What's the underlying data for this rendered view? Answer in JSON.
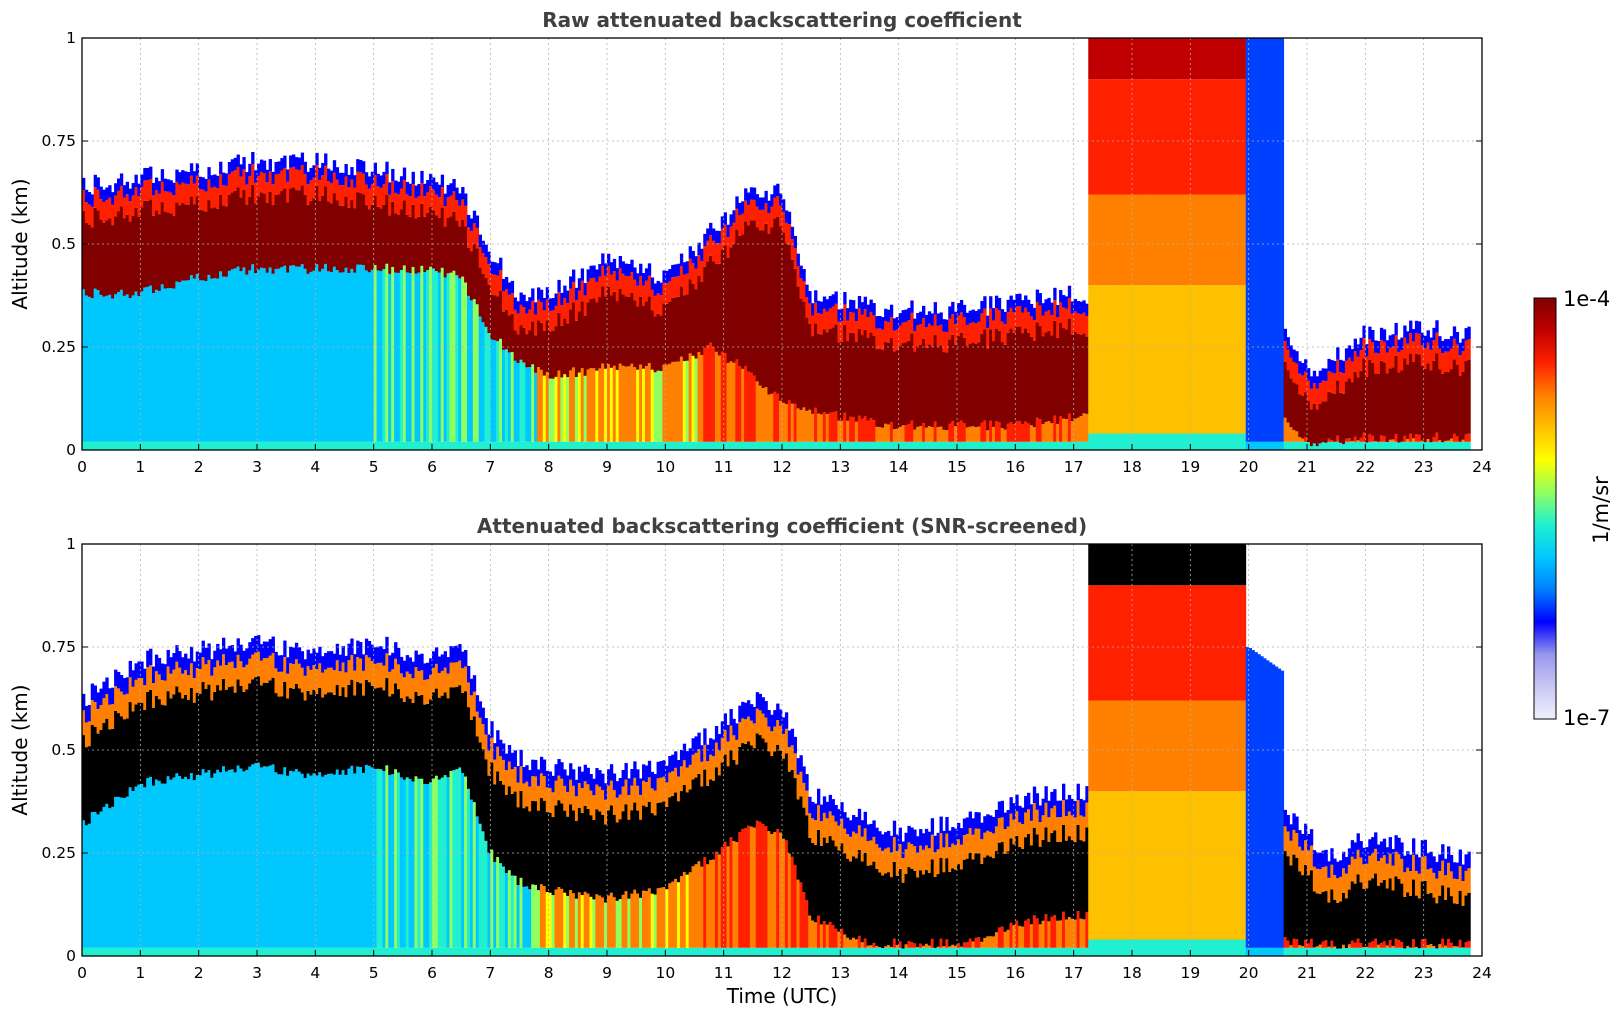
{
  "colorbar": {
    "max_label": "1e-4",
    "min_label": "1e-7",
    "unit_label": "1/m/sr",
    "colors": [
      "#f0f0fb",
      "#c8c8f4",
      "#9696ec",
      "#0000ff",
      "#0080ff",
      "#00c8ff",
      "#20f0d0",
      "#90ff60",
      "#ffff00",
      "#ffc000",
      "#ff8000",
      "#ff2000",
      "#c00000",
      "#800000"
    ]
  },
  "chart_data": [
    {
      "type": "heatmap",
      "title": "Raw attenuated backscattering coefficient",
      "xlabel": "",
      "ylabel": "Altitude (km)",
      "xlim": [
        0,
        24
      ],
      "ylim": [
        0,
        1
      ],
      "xticks": [
        "0",
        "1",
        "2",
        "3",
        "4",
        "5",
        "6",
        "7",
        "8",
        "9",
        "10",
        "11",
        "12",
        "13",
        "14",
        "15",
        "16",
        "17",
        "18",
        "19",
        "20",
        "21",
        "22",
        "23",
        "24"
      ],
      "yticks": [
        "0",
        "0.25",
        "0.5",
        "0.75",
        "1"
      ],
      "grid": true,
      "data_end_hour": 23.8,
      "layer_top_km": {
        "hour": [
          0,
          1,
          2,
          3,
          4,
          5,
          6,
          6.5,
          7,
          7.5,
          8,
          9,
          10,
          10.8,
          11.5,
          12,
          12.5,
          13,
          14,
          15,
          16,
          17,
          17.2,
          20.0,
          20.5,
          21.0,
          21.3,
          22,
          23,
          23.5
        ],
        "km": [
          0.56,
          0.58,
          0.6,
          0.62,
          0.62,
          0.6,
          0.58,
          0.55,
          0.4,
          0.3,
          0.3,
          0.38,
          0.34,
          0.45,
          0.55,
          0.55,
          0.3,
          0.28,
          0.26,
          0.26,
          0.28,
          0.3,
          0.3,
          0.3,
          0.25,
          0.12,
          0.12,
          0.2,
          0.22,
          0.2
        ]
      },
      "layer_base_km": {
        "hour": [
          0,
          1,
          2,
          3,
          4,
          5,
          6,
          6.5,
          7,
          7.5,
          8,
          9,
          10,
          10.8,
          11.5,
          12,
          12.5,
          13,
          14,
          15,
          16,
          17,
          17.2,
          20.0,
          20.5,
          21.0,
          21.3,
          22,
          23,
          23.5
        ],
        "km": [
          0.38,
          0.38,
          0.42,
          0.44,
          0.44,
          0.44,
          0.44,
          0.42,
          0.28,
          0.22,
          0.18,
          0.2,
          0.2,
          0.25,
          0.18,
          0.12,
          0.1,
          0.08,
          0.06,
          0.06,
          0.06,
          0.08,
          0.1,
          0.1,
          0.1,
          0.02,
          0.02,
          0.03,
          0.03,
          0.03
        ]
      },
      "fog_hours": [
        17.25,
        19.95
      ],
      "blue_column_hours": [
        19.95,
        20.6
      ]
    },
    {
      "type": "heatmap",
      "title": "Attenuated backscattering coefficient (SNR-screened)",
      "xlabel": "Time (UTC)",
      "ylabel": "Altitude (km)",
      "xlim": [
        0,
        24
      ],
      "ylim": [
        0,
        1
      ],
      "xticks": [
        "0",
        "1",
        "2",
        "3",
        "4",
        "5",
        "6",
        "7",
        "8",
        "9",
        "10",
        "11",
        "12",
        "13",
        "14",
        "15",
        "16",
        "17",
        "18",
        "19",
        "20",
        "21",
        "22",
        "23",
        "24"
      ],
      "yticks": [
        "0",
        "0.25",
        "0.5",
        "0.75",
        "1"
      ],
      "grid": true,
      "data_end_hour": 23.8,
      "screened_top_km": {
        "hour": [
          0,
          1,
          2,
          3,
          4,
          5,
          6,
          6.5,
          7,
          7.5,
          8,
          9,
          10,
          10.8,
          11.5,
          12,
          12.5,
          13,
          14,
          15,
          16,
          17,
          17.2,
          20.0,
          20.5,
          21.0,
          21.3,
          22,
          23,
          23.5
        ],
        "km": [
          0.62,
          0.72,
          0.74,
          0.76,
          0.74,
          0.76,
          0.72,
          0.76,
          0.55,
          0.48,
          0.46,
          0.44,
          0.46,
          0.54,
          0.62,
          0.6,
          0.4,
          0.36,
          0.3,
          0.32,
          0.38,
          0.4,
          0.4,
          0.4,
          0.35,
          0.3,
          0.24,
          0.28,
          0.26,
          0.24
        ]
      },
      "fog_hours": [
        17.25,
        19.95
      ],
      "blue_column_hours": [
        19.95,
        20.6
      ]
    }
  ]
}
